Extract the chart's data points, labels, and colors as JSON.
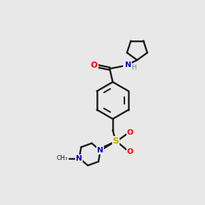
{
  "background_color": "#e8e8e8",
  "line_color": "#1a1a1a",
  "bond_width": 1.8,
  "fig_width": 3.0,
  "fig_height": 3.0,
  "dpi": 100,
  "colors": {
    "C": "#1a1a1a",
    "N": "#0000cc",
    "O": "#ff0000",
    "S": "#ccaa00",
    "H": "#4a9090"
  }
}
